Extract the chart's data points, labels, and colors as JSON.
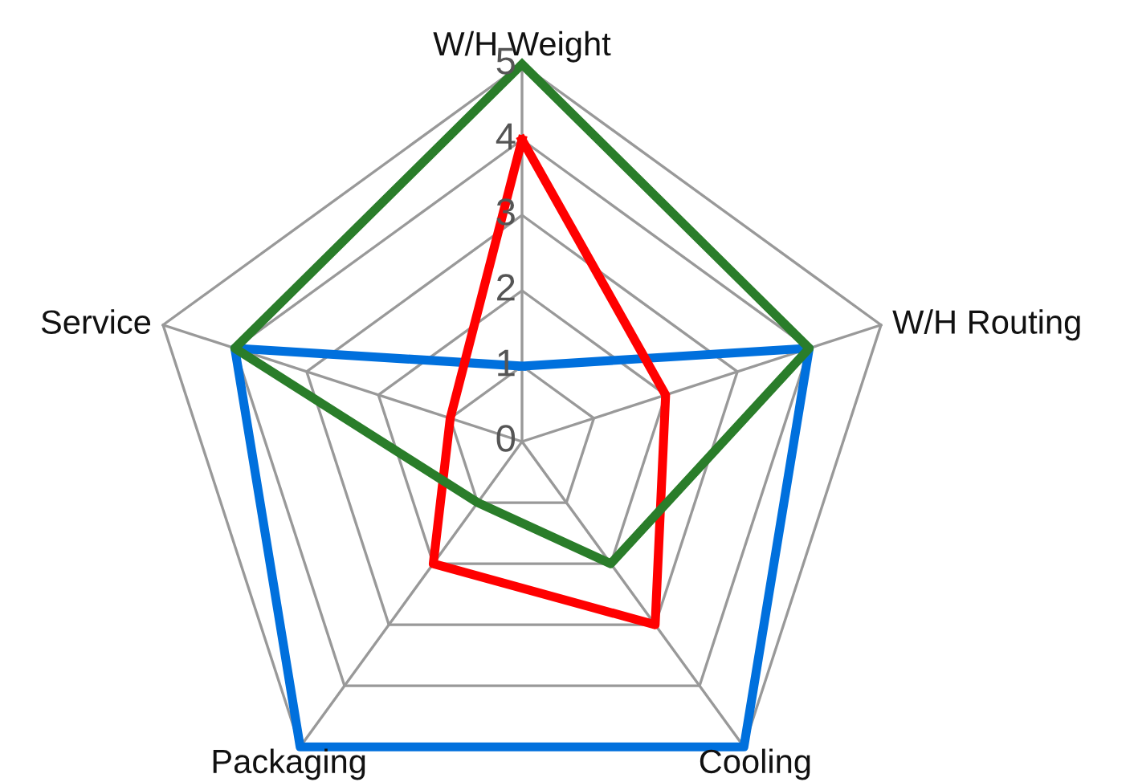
{
  "chart_data": {
    "type": "radar",
    "categories": [
      "W/H Weight",
      "W/H Routing",
      "Cooling",
      "Packaging",
      "Service"
    ],
    "series": [
      {
        "color": "#0070dd",
        "values": [
          1,
          4,
          5,
          5,
          4
        ]
      },
      {
        "color": "#ff0000",
        "values": [
          4,
          2,
          3,
          2,
          1
        ]
      },
      {
        "color": "#2a7d2a",
        "values": [
          5,
          4,
          2,
          1,
          4
        ]
      }
    ],
    "ylim": [
      0,
      5
    ],
    "yticks": [
      0,
      1,
      2,
      3,
      4,
      5
    ]
  }
}
